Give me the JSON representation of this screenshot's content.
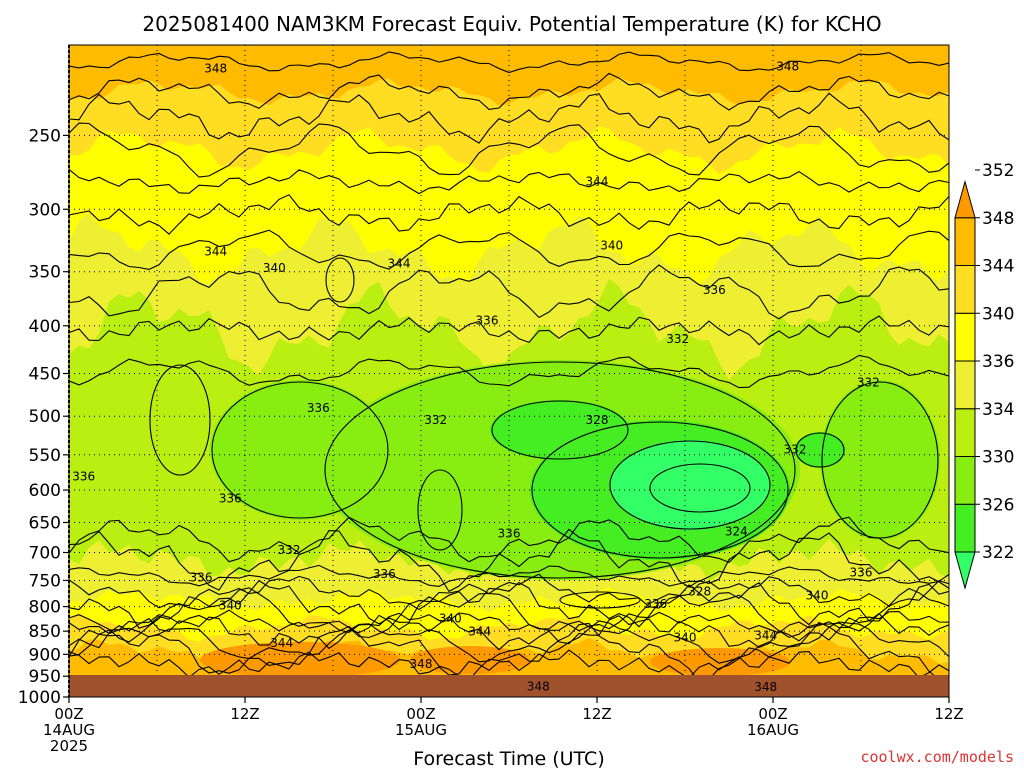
{
  "chart_data": {
    "type": "heatmap",
    "title": "2025081400 NAM3KM Forecast Equiv. Potential Temperature (K) for KCHO",
    "xlabel": "Forecast Time (UTC)",
    "ylabel": "",
    "credit": "coolwx.com/models",
    "y_axis": {
      "scale": "log-pressure",
      "range": [
        1000,
        200
      ],
      "ticks": [
        "250",
        "300",
        "350",
        "400",
        "450",
        "500",
        "550",
        "600",
        "650",
        "700",
        "750",
        "800",
        "850",
        "900",
        "950",
        "1000"
      ]
    },
    "x_axis": {
      "range_hours": [
        0,
        60
      ],
      "ticks": [
        {
          "hour": 0,
          "line1": "00Z",
          "line2": "14AUG",
          "line3": "2025"
        },
        {
          "hour": 12,
          "line1": "12Z",
          "line2": "",
          "line3": ""
        },
        {
          "hour": 24,
          "line1": "00Z",
          "line2": "15AUG",
          "line3": ""
        },
        {
          "hour": 36,
          "line1": "12Z",
          "line2": "",
          "line3": ""
        },
        {
          "hour": 48,
          "line1": "00Z",
          "line2": "16AUG",
          "line3": ""
        },
        {
          "hour": 60,
          "line1": "12Z",
          "line2": "",
          "line3": ""
        }
      ]
    },
    "colorbar": {
      "levels": [
        "322",
        "326",
        "330",
        "334",
        "336",
        "340",
        "344",
        "348",
        "352"
      ],
      "colors": [
        "#33ff66",
        "#44ee22",
        "#88ee11",
        "#bbee11",
        "#eeee33",
        "#ffff00",
        "#ffdd22",
        "#ffbb00",
        "#ff9900"
      ]
    },
    "contour_labels": [
      {
        "text": "348",
        "hour": 10.0,
        "p": 212
      },
      {
        "text": "348",
        "hour": 49.0,
        "p": 211
      },
      {
        "text": "344",
        "hour": 36.0,
        "p": 280
      },
      {
        "text": "344",
        "hour": 10.0,
        "p": 333
      },
      {
        "text": "344",
        "hour": 22.5,
        "p": 343
      },
      {
        "text": "340",
        "hour": 14.0,
        "p": 347
      },
      {
        "text": "340",
        "hour": 37.0,
        "p": 328
      },
      {
        "text": "336",
        "hour": 44.0,
        "p": 366
      },
      {
        "text": "336",
        "hour": 28.5,
        "p": 395
      },
      {
        "text": "332",
        "hour": 41.5,
        "p": 413
      },
      {
        "text": "332",
        "hour": 54.5,
        "p": 460
      },
      {
        "text": "336",
        "hour": 17.0,
        "p": 490
      },
      {
        "text": "332",
        "hour": 25.0,
        "p": 505
      },
      {
        "text": "328",
        "hour": 36.0,
        "p": 505
      },
      {
        "text": "332",
        "hour": 49.5,
        "p": 543
      },
      {
        "text": "336",
        "hour": 1.0,
        "p": 580
      },
      {
        "text": "336",
        "hour": 11.0,
        "p": 613
      },
      {
        "text": "324",
        "hour": 45.5,
        "p": 665
      },
      {
        "text": "336",
        "hour": 30.0,
        "p": 668
      },
      {
        "text": "332",
        "hour": 15.0,
        "p": 696
      },
      {
        "text": "336",
        "hour": 21.5,
        "p": 738
      },
      {
        "text": "336",
        "hour": 9.0,
        "p": 745
      },
      {
        "text": "336",
        "hour": 54.0,
        "p": 735
      },
      {
        "text": "328",
        "hour": 43.0,
        "p": 771
      },
      {
        "text": "340",
        "hour": 51.0,
        "p": 778
      },
      {
        "text": "336",
        "hour": 40.0,
        "p": 795
      },
      {
        "text": "340",
        "hour": 11.0,
        "p": 798
      },
      {
        "text": "340",
        "hour": 26.0,
        "p": 824
      },
      {
        "text": "344",
        "hour": 28.0,
        "p": 851
      },
      {
        "text": "344",
        "hour": 14.5,
        "p": 875
      },
      {
        "text": "340",
        "hour": 42.0,
        "p": 863
      },
      {
        "text": "344",
        "hour": 47.5,
        "p": 859
      },
      {
        "text": "348",
        "hour": 24.0,
        "p": 922
      },
      {
        "text": "348",
        "hour": 32.0,
        "p": 975
      },
      {
        "text": "348",
        "hour": 47.5,
        "p": 976
      }
    ]
  }
}
